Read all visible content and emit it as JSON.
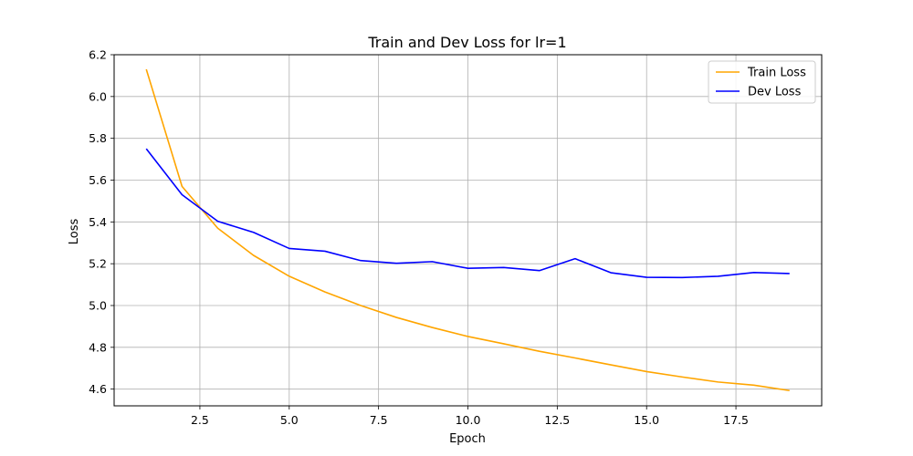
{
  "chart_data": {
    "type": "line",
    "title": "Train and Dev Loss for lr=1",
    "xlabel": "Epoch",
    "ylabel": "Loss",
    "xlim": [
      0.1,
      19.9
    ],
    "ylim": [
      4.52,
      6.2
    ],
    "x_ticks": [
      2.5,
      5.0,
      7.5,
      10.0,
      12.5,
      15.0,
      17.5
    ],
    "x_tick_labels": [
      "2.5",
      "5.0",
      "7.5",
      "10.0",
      "12.5",
      "15.0",
      "17.5"
    ],
    "y_ticks": [
      4.6,
      4.8,
      5.0,
      5.2,
      5.4,
      5.6,
      5.8,
      6.0,
      6.2
    ],
    "y_tick_labels": [
      "4.6",
      "4.8",
      "5.0",
      "5.2",
      "5.4",
      "5.6",
      "5.8",
      "6.0",
      "6.2"
    ],
    "grid": true,
    "legend_position": "top-right",
    "x": [
      1,
      2,
      3,
      4,
      5,
      6,
      7,
      8,
      9,
      10,
      11,
      12,
      13,
      14,
      15,
      16,
      17,
      18,
      19
    ],
    "series": [
      {
        "name": "Train Loss",
        "color": "#ffa500",
        "values": [
          6.13,
          5.57,
          5.37,
          5.24,
          5.14,
          5.065,
          5.0,
          4.943,
          4.895,
          4.852,
          4.817,
          4.781,
          4.749,
          4.716,
          4.684,
          4.658,
          4.634,
          4.619,
          4.593
        ]
      },
      {
        "name": "Dev Loss",
        "color": "#0000ff",
        "values": [
          5.75,
          5.53,
          5.403,
          5.35,
          5.273,
          5.26,
          5.215,
          5.202,
          5.21,
          5.178,
          5.182,
          5.167,
          5.224,
          5.157,
          5.135,
          5.134,
          5.14,
          5.158,
          5.153
        ]
      }
    ]
  }
}
